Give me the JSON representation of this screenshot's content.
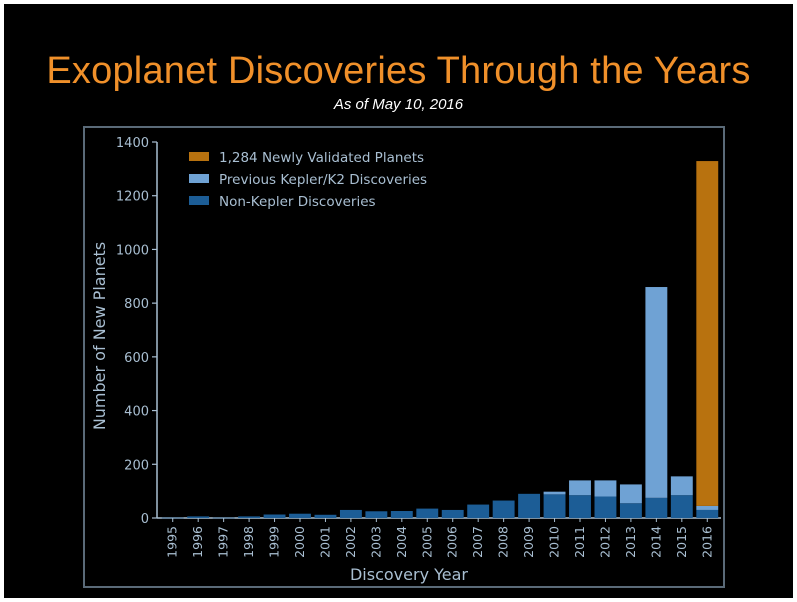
{
  "slide": {
    "title": "Exoplanet Discoveries Through the Years",
    "subtitle": "As of May 10, 2016"
  },
  "colors": {
    "background": "#000000",
    "title": "#f0902a",
    "axis": "#a9bfd2",
    "newly_validated": "#b8720f",
    "previous_kepler": "#6fa2d4",
    "non_kepler": "#1c5d96"
  },
  "chart_data": {
    "type": "bar",
    "stacked": true,
    "xlabel": "Discovery Year",
    "ylabel": "Number of New Planets",
    "ylim": [
      0,
      1400
    ],
    "yticks": [
      0,
      200,
      400,
      600,
      800,
      1000,
      1200,
      1400
    ],
    "grid": false,
    "legend_position": "top-left",
    "categories": [
      "1995",
      "1996",
      "1997",
      "1998",
      "1999",
      "2000",
      "2001",
      "2002",
      "2003",
      "2004",
      "2005",
      "2006",
      "2007",
      "2008",
      "2009",
      "2010",
      "2011",
      "2012",
      "2013",
      "2014",
      "2015",
      "2016"
    ],
    "series": [
      {
        "name": "Non-Kepler Discoveries",
        "color": "#1c5d96",
        "values": [
          1,
          6,
          1,
          6,
          13,
          16,
          12,
          30,
          25,
          26,
          35,
          30,
          50,
          65,
          90,
          88,
          85,
          80,
          55,
          75,
          85,
          30
        ]
      },
      {
        "name": "Previous Kepler/K2 Discoveries",
        "color": "#6fa2d4",
        "values": [
          0,
          0,
          0,
          0,
          0,
          0,
          0,
          0,
          0,
          0,
          0,
          0,
          0,
          0,
          0,
          10,
          55,
          60,
          70,
          785,
          70,
          15
        ]
      },
      {
        "name": "1,284 Newly Validated Planets",
        "color": "#b8720f",
        "values": [
          0,
          0,
          0,
          0,
          0,
          0,
          0,
          0,
          0,
          0,
          0,
          0,
          0,
          0,
          0,
          0,
          0,
          0,
          0,
          0,
          0,
          1284
        ]
      }
    ],
    "legend_order": [
      2,
      1,
      0
    ]
  }
}
